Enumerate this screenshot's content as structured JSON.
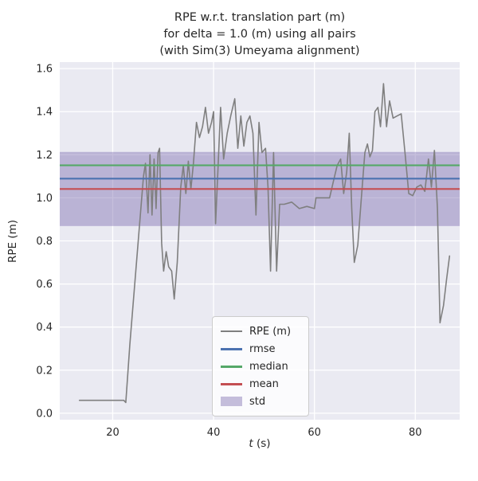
{
  "figure": {
    "title": "RPE w.r.t. translation part (m)\nfor delta = 1.0 (m) using all pairs\n(with Sim(3) Umeyama alignment)",
    "xlabel_italic": "t",
    "xlabel_rest": " (s)",
    "ylabel": "RPE (m)"
  },
  "chart_data": {
    "type": "line",
    "title": "RPE w.r.t. translation part (m)\nfor delta = 1.0 (m) using all pairs\n(with Sim(3) Umeyama alignment)",
    "xlabel": "t (s)",
    "ylabel": "RPE (m)",
    "xlim": [
      9.5,
      88.8
    ],
    "ylim": [
      -0.03,
      1.63
    ],
    "xticks": [
      20,
      40,
      60,
      80
    ],
    "yticks": [
      0.0,
      0.2,
      0.4,
      0.6,
      0.8,
      1.0,
      1.2,
      1.4,
      1.6
    ],
    "grid": true,
    "legend_position": "lower center",
    "colors": {
      "axes_background": "#eaeaf2",
      "grid": "#ffffff",
      "text": "#262626"
    },
    "stats": {
      "rmse": 1.089,
      "median": 1.151,
      "mean": 1.041,
      "std": 0.172
    },
    "series": [
      {
        "name": "RPE (m)",
        "kind": "line",
        "color": "#7f7f7f",
        "points": [
          [
            13.4,
            0.06
          ],
          [
            15,
            0.06
          ],
          [
            17,
            0.06
          ],
          [
            19,
            0.06
          ],
          [
            21,
            0.06
          ],
          [
            22.2,
            0.06
          ],
          [
            22.6,
            0.05
          ],
          [
            23.4,
            0.32
          ],
          [
            24.3,
            0.58
          ],
          [
            25.2,
            0.84
          ],
          [
            26.1,
            1.1
          ],
          [
            26.5,
            1.16
          ],
          [
            27.0,
            0.93
          ],
          [
            27.4,
            1.2
          ],
          [
            27.8,
            0.92
          ],
          [
            28.2,
            1.18
          ],
          [
            28.6,
            0.95
          ],
          [
            29.0,
            1.21
          ],
          [
            29.3,
            1.23
          ],
          [
            29.7,
            0.79
          ],
          [
            30.1,
            0.66
          ],
          [
            30.6,
            0.75
          ],
          [
            31.1,
            0.68
          ],
          [
            31.7,
            0.66
          ],
          [
            32.2,
            0.53
          ],
          [
            32.8,
            0.7
          ],
          [
            33.5,
            1.05
          ],
          [
            34.0,
            1.15
          ],
          [
            34.5,
            1.02
          ],
          [
            35.0,
            1.17
          ],
          [
            35.5,
            1.04
          ],
          [
            36.0,
            1.16
          ],
          [
            36.6,
            1.35
          ],
          [
            37.2,
            1.28
          ],
          [
            37.8,
            1.33
          ],
          [
            38.4,
            1.42
          ],
          [
            39.0,
            1.3
          ],
          [
            39.6,
            1.35
          ],
          [
            40.0,
            1.4
          ],
          [
            40.4,
            0.88
          ],
          [
            40.9,
            1.15
          ],
          [
            41.4,
            1.42
          ],
          [
            42.0,
            1.18
          ],
          [
            42.7,
            1.3
          ],
          [
            43.4,
            1.38
          ],
          [
            44.2,
            1.46
          ],
          [
            44.8,
            1.23
          ],
          [
            45.4,
            1.38
          ],
          [
            46.0,
            1.24
          ],
          [
            46.6,
            1.35
          ],
          [
            47.2,
            1.38
          ],
          [
            47.8,
            1.3
          ],
          [
            48.4,
            0.92
          ],
          [
            49.0,
            1.35
          ],
          [
            49.6,
            1.21
          ],
          [
            50.3,
            1.23
          ],
          [
            50.8,
            1.05
          ],
          [
            51.3,
            0.66
          ],
          [
            51.9,
            1.21
          ],
          [
            52.5,
            0.66
          ],
          [
            53.1,
            0.97
          ],
          [
            54,
            0.97
          ],
          [
            55.5,
            0.98
          ],
          [
            57,
            0.95
          ],
          [
            58.5,
            0.96
          ],
          [
            60,
            0.95
          ],
          [
            60.3,
            1.0
          ],
          [
            61.5,
            1.0
          ],
          [
            63,
            1.0
          ],
          [
            63.8,
            1.08
          ],
          [
            64.5,
            1.15
          ],
          [
            65.2,
            1.18
          ],
          [
            65.8,
            1.02
          ],
          [
            66.4,
            1.12
          ],
          [
            66.9,
            1.3
          ],
          [
            67.4,
            0.95
          ],
          [
            67.9,
            0.7
          ],
          [
            68.6,
            0.78
          ],
          [
            69.3,
            1.0
          ],
          [
            70.0,
            1.21
          ],
          [
            70.5,
            1.25
          ],
          [
            71.0,
            1.19
          ],
          [
            71.5,
            1.22
          ],
          [
            72.0,
            1.4
          ],
          [
            72.6,
            1.42
          ],
          [
            73.1,
            1.33
          ],
          [
            73.7,
            1.53
          ],
          [
            74.3,
            1.33
          ],
          [
            74.9,
            1.45
          ],
          [
            75.6,
            1.37
          ],
          [
            76.4,
            1.38
          ],
          [
            77.2,
            1.39
          ],
          [
            78.0,
            1.2
          ],
          [
            78.7,
            1.02
          ],
          [
            79.5,
            1.01
          ],
          [
            80.3,
            1.05
          ],
          [
            81.1,
            1.06
          ],
          [
            81.9,
            1.03
          ],
          [
            82.6,
            1.18
          ],
          [
            83.2,
            1.05
          ],
          [
            83.8,
            1.22
          ],
          [
            84.4,
            0.95
          ],
          [
            84.9,
            0.42
          ],
          [
            85.6,
            0.5
          ],
          [
            86.2,
            0.62
          ],
          [
            86.8,
            0.73
          ]
        ]
      },
      {
        "name": "rmse",
        "kind": "hline",
        "color": "#4c72b0",
        "value": 1.089
      },
      {
        "name": "median",
        "kind": "hline",
        "color": "#55a868",
        "value": 1.151
      },
      {
        "name": "mean",
        "kind": "hline",
        "color": "#c44e52",
        "value": 1.041
      },
      {
        "name": "std",
        "kind": "hband",
        "color": "#8172b2",
        "alpha": 0.45,
        "range": [
          0.869,
          1.213
        ]
      }
    ]
  }
}
